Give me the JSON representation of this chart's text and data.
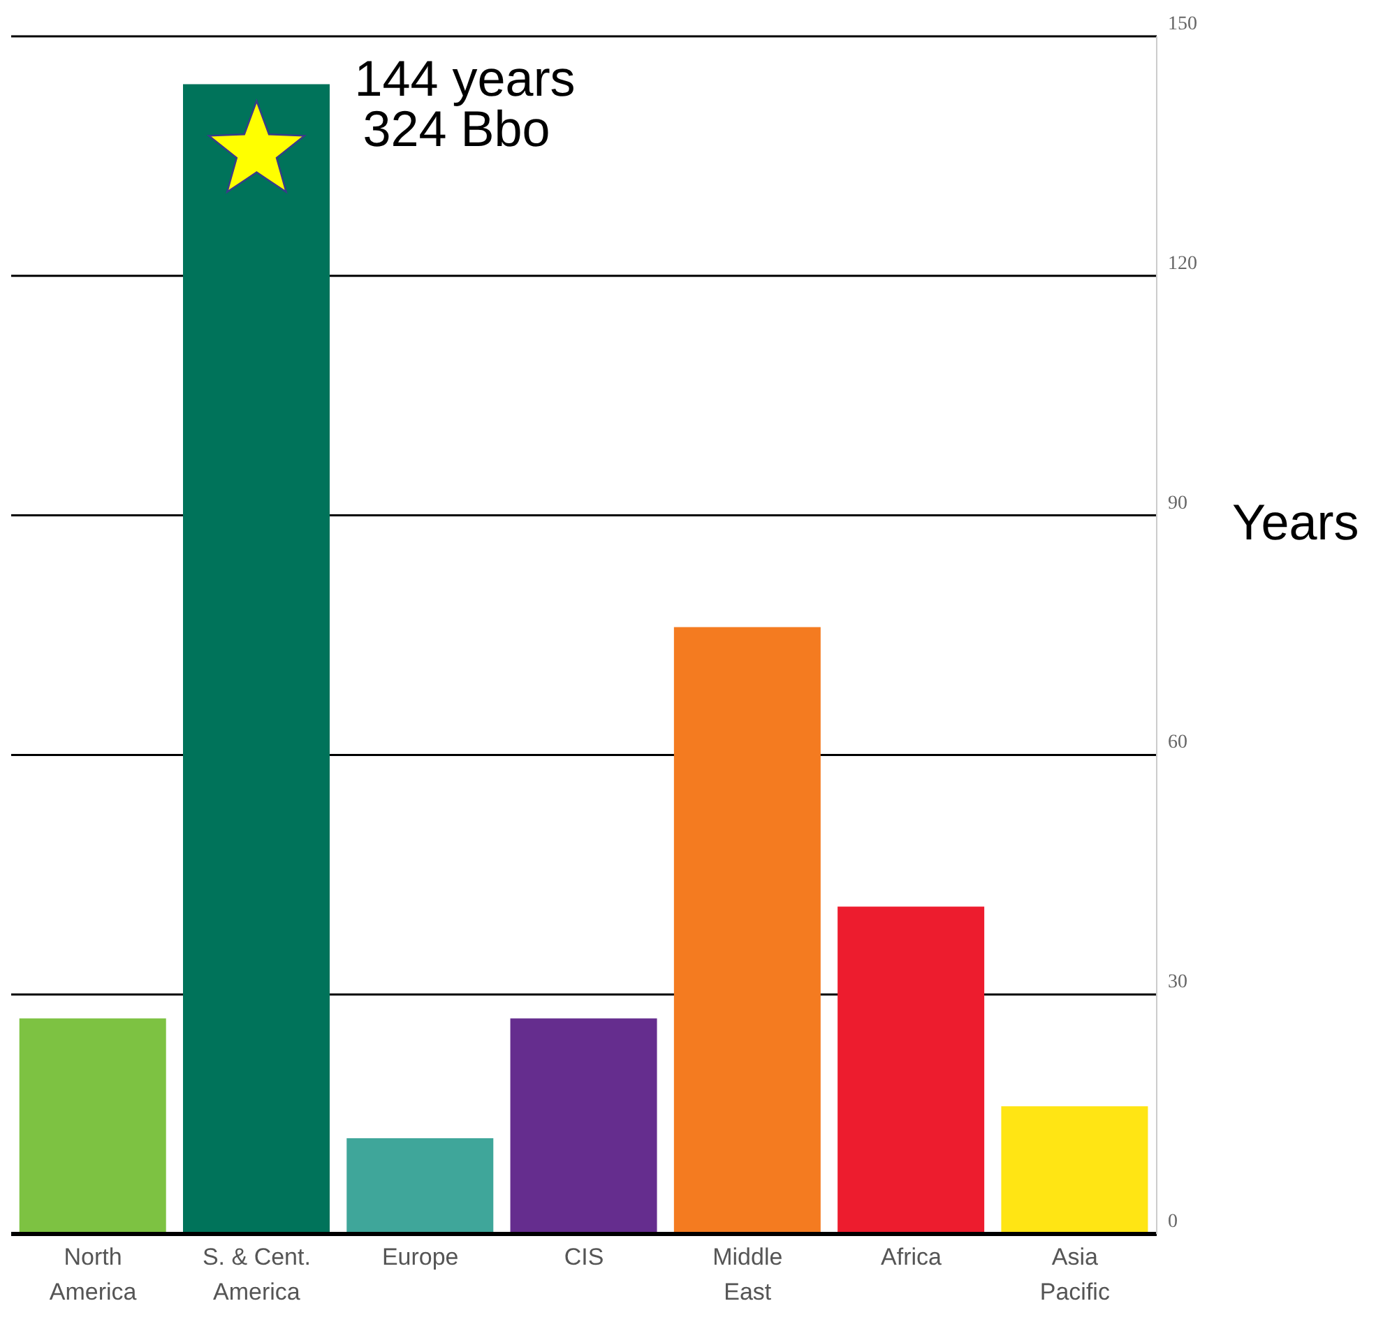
{
  "chart_data": {
    "type": "bar",
    "categories": [
      "North\nAmerica",
      "S. & Cent.\nAmerica",
      "Europe",
      "CIS",
      "Middle\nEast",
      "Africa",
      "Asia\nPacific"
    ],
    "values": [
      27,
      144,
      12,
      27,
      76,
      41,
      16
    ],
    "colors": [
      "#7dc242",
      "#00735a",
      "#3fa69a",
      "#652d8e",
      "#f47b20",
      "#ed1c2e",
      "#ffe514"
    ],
    "ylabel": "Years",
    "ylim": [
      0,
      150
    ],
    "yticks": [
      0,
      30,
      60,
      90,
      120,
      150
    ],
    "grid": "y",
    "legend": false,
    "annotations": [
      {
        "text": "144 years",
        "x": "S. & Cent.\nAmerica",
        "y": 144
      },
      {
        "text": "324 Bbo",
        "x": "S. & Cent.\nAmerica",
        "y": 144
      }
    ]
  }
}
